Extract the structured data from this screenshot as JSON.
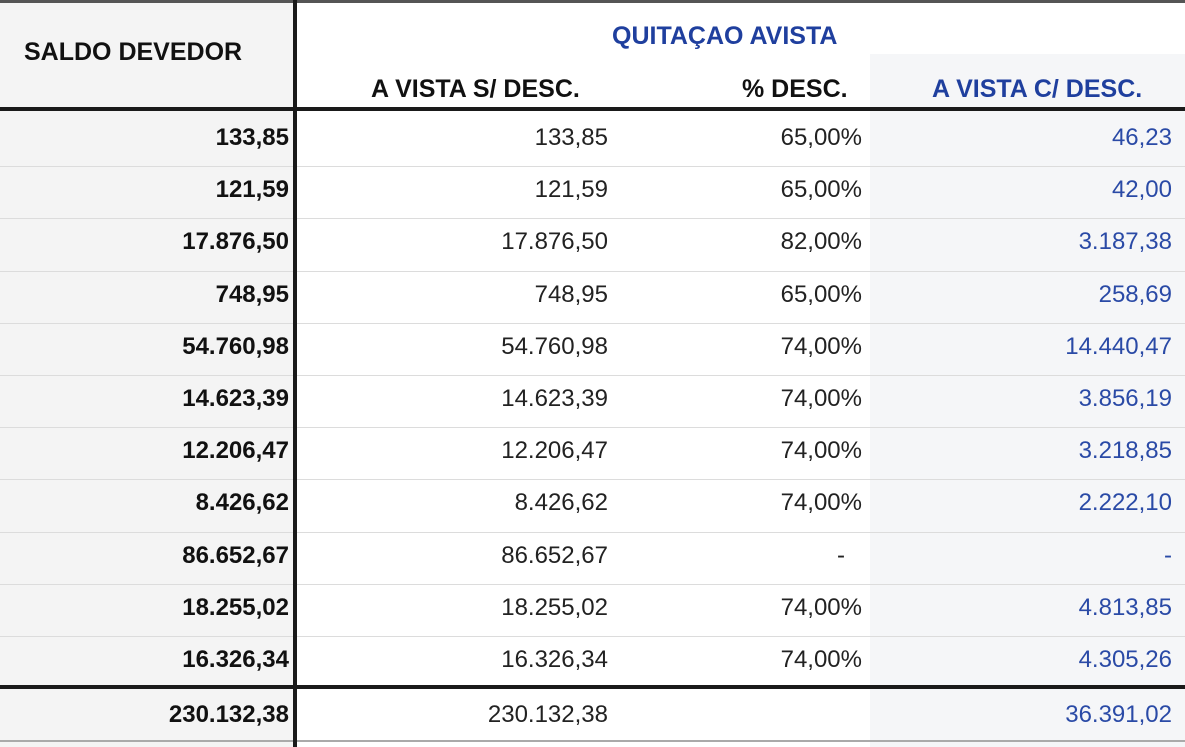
{
  "header": {
    "saldo_devedor": "SALDO DEVEDOR",
    "quitacao": "QUITAÇAO AVISTA",
    "col_vista_sem_desc": "A VISTA S/ DESC.",
    "col_pct_desc": "% DESC.",
    "col_vista_com_desc": "A VISTA C/ DESC."
  },
  "colors": {
    "header_blue": "#1f3f9e",
    "value_blue": "#2a4aa6"
  },
  "rows": [
    {
      "saldo": "133,85",
      "vista": "133,85",
      "pct": "65,00%",
      "desc": "46,23"
    },
    {
      "saldo": "121,59",
      "vista": "121,59",
      "pct": "65,00%",
      "desc": "42,00"
    },
    {
      "saldo": "17.876,50",
      "vista": "17.876,50",
      "pct": "82,00%",
      "desc": "3.187,38"
    },
    {
      "saldo": "748,95",
      "vista": "748,95",
      "pct": "65,00%",
      "desc": "258,69"
    },
    {
      "saldo": "54.760,98",
      "vista": "54.760,98",
      "pct": "74,00%",
      "desc": "14.440,47"
    },
    {
      "saldo": "14.623,39",
      "vista": "14.623,39",
      "pct": "74,00%",
      "desc": "3.856,19"
    },
    {
      "saldo": "12.206,47",
      "vista": "12.206,47",
      "pct": "74,00%",
      "desc": "3.218,85"
    },
    {
      "saldo": "8.426,62",
      "vista": "8.426,62",
      "pct": "74,00%",
      "desc": "2.222,10"
    },
    {
      "saldo": "86.652,67",
      "vista": "86.652,67",
      "pct": "-",
      "desc": "-"
    },
    {
      "saldo": "18.255,02",
      "vista": "18.255,02",
      "pct": "74,00%",
      "desc": "4.813,85"
    },
    {
      "saldo": "16.326,34",
      "vista": "16.326,34",
      "pct": "74,00%",
      "desc": "4.305,26"
    }
  ],
  "total": {
    "saldo": "230.132,38",
    "vista": "230.132,38",
    "pct": "",
    "desc": "36.391,02"
  }
}
